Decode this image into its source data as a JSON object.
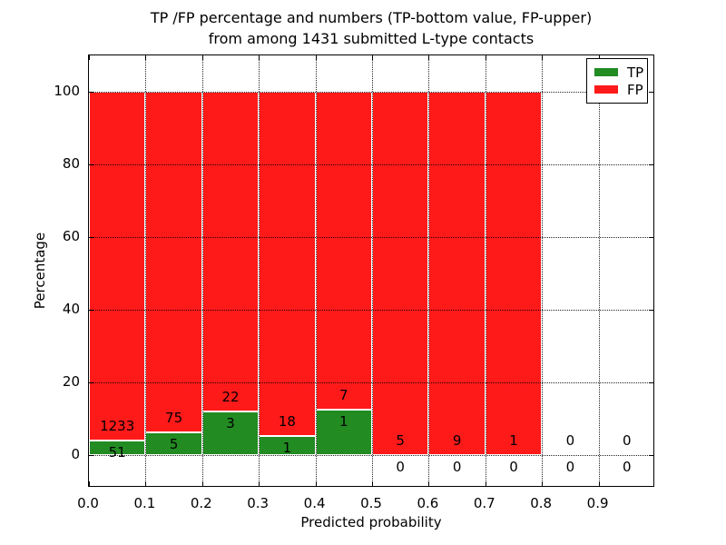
{
  "colors": {
    "tp": "#228b22",
    "fp": "#ff1a1a",
    "grid": "#000000",
    "text": "#000000",
    "background": "#ffffff"
  },
  "chart_data": {
    "type": "bar",
    "stacked": true,
    "title_line1": "TP /FP percentage and numbers (TP-bottom value, FP-upper)",
    "title_line2": "from among 1431 submitted L-type contacts",
    "xlabel": "Predicted probability",
    "ylabel": "Percentage",
    "xlim": [
      0.0,
      1.0
    ],
    "ylim": [
      -9,
      110
    ],
    "xticks": [
      "0.0",
      "0.1",
      "0.2",
      "0.3",
      "0.4",
      "0.5",
      "0.6",
      "0.7",
      "0.8",
      "0.9"
    ],
    "yticks": [
      0,
      20,
      40,
      60,
      80,
      100
    ],
    "bin_width": 0.1,
    "grid": {
      "style": "dotted",
      "axes": "both",
      "above_bars": true
    },
    "legend": {
      "position": "upper right",
      "entries": [
        {
          "label": "TP",
          "color_key": "tp"
        },
        {
          "label": "FP",
          "color_key": "fp"
        }
      ]
    },
    "total_submitted": "1431",
    "bins": [
      {
        "x_start": 0.0,
        "x_end": 0.1,
        "tp_count": "51",
        "fp_count": "1233",
        "tp_pct": 3.97,
        "fp_pct": 96.03
      },
      {
        "x_start": 0.1,
        "x_end": 0.2,
        "tp_count": "5",
        "fp_count": "75",
        "tp_pct": 6.25,
        "fp_pct": 93.75
      },
      {
        "x_start": 0.2,
        "x_end": 0.3,
        "tp_count": "3",
        "fp_count": "22",
        "tp_pct": 12.0,
        "fp_pct": 88.0
      },
      {
        "x_start": 0.3,
        "x_end": 0.4,
        "tp_count": "1",
        "fp_count": "18",
        "tp_pct": 5.26,
        "fp_pct": 94.74
      },
      {
        "x_start": 0.4,
        "x_end": 0.5,
        "tp_count": "1",
        "fp_count": "7",
        "tp_pct": 12.5,
        "fp_pct": 87.5
      },
      {
        "x_start": 0.5,
        "x_end": 0.6,
        "tp_count": "0",
        "fp_count": "5",
        "tp_pct": 0,
        "fp_pct": 100
      },
      {
        "x_start": 0.6,
        "x_end": 0.7,
        "tp_count": "0",
        "fp_count": "9",
        "tp_pct": 0,
        "fp_pct": 100
      },
      {
        "x_start": 0.7,
        "x_end": 0.8,
        "tp_count": "0",
        "fp_count": "1",
        "tp_pct": 0,
        "fp_pct": 100
      },
      {
        "x_start": 0.8,
        "x_end": 0.9,
        "tp_count": "0",
        "fp_count": "0",
        "tp_pct": 0,
        "fp_pct": 0
      },
      {
        "x_start": 0.9,
        "x_end": 1.0,
        "tp_count": "0",
        "fp_count": "0",
        "tp_pct": 0,
        "fp_pct": 0
      }
    ]
  }
}
